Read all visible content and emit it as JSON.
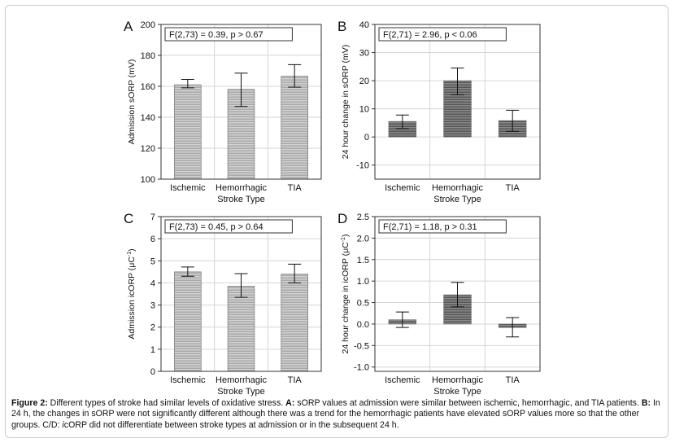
{
  "figure": {
    "caption": {
      "label": "Figure 2:",
      "segments": [
        {
          "bold": false,
          "text": " Different types of stroke had similar levels of oxidative stress. "
        },
        {
          "bold": true,
          "text": "A:"
        },
        {
          "bold": false,
          "text": " sORP values at admission were similar between ischemic, hemorrhagic, and TIA patients. "
        },
        {
          "bold": true,
          "text": "B:"
        },
        {
          "bold": false,
          "text": " In 24 h, the changes in sORP were not significantly different although there was a trend for the hemorrhagic patients have elevated sORP values more so that the other groups. C/D: "
        },
        {
          "bold": false,
          "italic": true,
          "text": "i"
        },
        {
          "bold": false,
          "text": "cORP did not differentiate between stroke types at admission or in the subsequent 24 h."
        }
      ]
    }
  },
  "chart_data": [
    {
      "panel": "A",
      "type": "bar",
      "categories": [
        "Ischemic",
        "Hemorrhagic",
        "TIA"
      ],
      "values": [
        161,
        158,
        166.5
      ],
      "error_low": [
        159,
        147,
        159.5
      ],
      "error_high": [
        164.5,
        168.5,
        174
      ],
      "xlabel": "Stroke Type",
      "ylabel": "Admission sORP (mV)",
      "ylim": [
        100,
        200
      ],
      "yticks": [
        "100",
        "120",
        "140",
        "160",
        "180",
        "200"
      ],
      "stat_box": "F(2,73) = 0.39, p > 0.67",
      "bar_color": "#b4b4b4",
      "grid": true
    },
    {
      "panel": "B",
      "type": "bar",
      "categories": [
        "Ischemic",
        "Hemorrhagic",
        "TIA"
      ],
      "values": [
        5.5,
        20,
        5.8
      ],
      "error_low": [
        3,
        15,
        2
      ],
      "error_high": [
        7.8,
        24.5,
        9.5
      ],
      "xlabel": "Stroke Type",
      "ylabel": "24 hour change in sORP (mV)",
      "ylim": [
        -15,
        40
      ],
      "yticks": [
        "-10",
        "0",
        "10",
        "20",
        "30",
        "40"
      ],
      "stat_box": "F(2,71) = 2.96, p < 0.06",
      "bar_color": "#707070",
      "grid": true
    },
    {
      "panel": "C",
      "type": "bar",
      "categories": [
        "Ischemic",
        "Hemorrhagic",
        "TIA"
      ],
      "values": [
        4.5,
        3.85,
        4.4
      ],
      "error_low": [
        4.3,
        3.35,
        4.0
      ],
      "error_high": [
        4.72,
        4.42,
        4.85
      ],
      "xlabel": "Stroke Type",
      "ylabel": "Admission icORP (μC⁻¹)",
      "ylim": [
        0,
        7
      ],
      "yticks": [
        "0",
        "1",
        "2",
        "3",
        "4",
        "5",
        "6",
        "7"
      ],
      "stat_box": "F(2,73) = 0.45, p > 0.64",
      "bar_color": "#b4b4b4",
      "grid": true
    },
    {
      "panel": "D",
      "type": "bar",
      "categories": [
        "Ischemic",
        "Hemorrhagic",
        "TIA"
      ],
      "values": [
        0.1,
        0.68,
        -0.08
      ],
      "error_low": [
        -0.08,
        0.4,
        -0.3
      ],
      "error_high": [
        0.28,
        0.97,
        0.15
      ],
      "xlabel": "Stroke Type",
      "ylabel": "24 hour change in icORP (μC⁻¹)",
      "ylim": [
        -1.1,
        2.5
      ],
      "yticks": [
        "-1.0",
        "-0.5",
        "0.0",
        "0.5",
        "1.0",
        "1.5",
        "2.0",
        "2.5"
      ],
      "stat_box": "F(2,71) = 1.18, p > 0.31",
      "bar_color": "#707070",
      "grid": true
    }
  ]
}
